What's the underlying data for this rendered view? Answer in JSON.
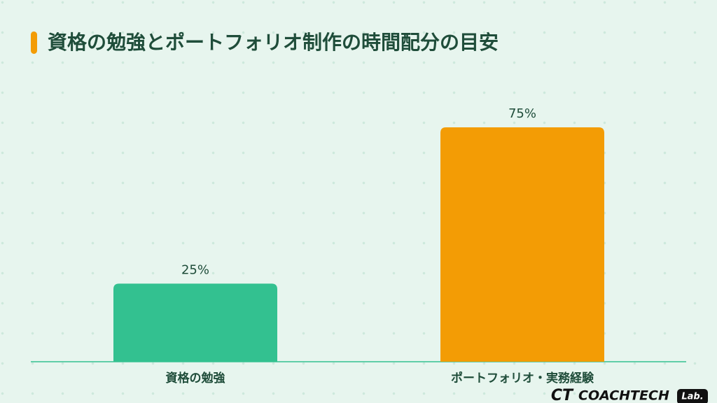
{
  "chart_data": {
    "type": "bar",
    "title": "資格の勉強とポートフォリオ制作の時間配分の目安",
    "categories": [
      "資格の勉強",
      "ポートフォリオ・実務経験"
    ],
    "values": [
      25,
      75
    ],
    "value_labels": [
      "25%",
      "75%"
    ],
    "colors": [
      "#33c190",
      "#f39c05"
    ]
  },
  "logo": {
    "mark": "CT",
    "name": "COACHTECH",
    "badge": "Lab."
  }
}
